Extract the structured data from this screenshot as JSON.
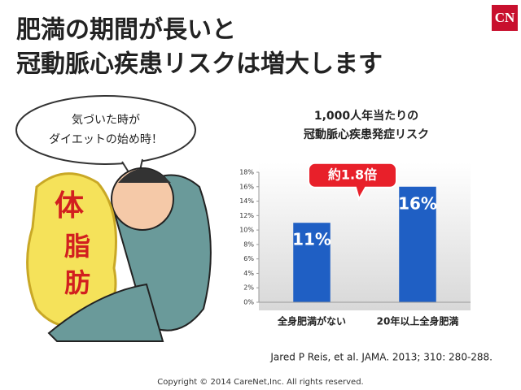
{
  "slide": {
    "title": [
      "肥満の期間が長いと",
      "冠動脈心疾患リスクは増大します"
    ],
    "logo": "CN",
    "bubble": [
      "気づいた時が",
      "ダイエットの始め時！"
    ],
    "illustration_text": [
      "体",
      "脂",
      "肪"
    ],
    "citation": "Jared P Reis, et al. JAMA. 2013; 310: 280-288.",
    "copyright": "Copyright © 2014 CareNet,Inc. All rights reserved."
  },
  "chart_data": {
    "type": "bar",
    "title": [
      "1,000人年当たりの",
      "冠動脈心疾患発症リスク"
    ],
    "categories": [
      "全身肥満がない",
      "20年以上全身肥満"
    ],
    "values": [
      11,
      16
    ],
    "value_labels": [
      "11%",
      "16%"
    ],
    "color": "#1f5fc4",
    "annotation": "約1.8倍",
    "ylim": [
      0,
      18
    ],
    "yticks": [
      {
        "value": 0,
        "label": "0%"
      },
      {
        "value": 2,
        "label": "2%"
      },
      {
        "value": 4,
        "label": "4%"
      },
      {
        "value": 6,
        "label": "6%"
      },
      {
        "value": 8,
        "label": "8%"
      },
      {
        "value": 10,
        "label": "10%"
      },
      {
        "value": 12,
        "label": "12%"
      },
      {
        "value": 14,
        "label": "14%"
      },
      {
        "value": 16,
        "label": "16%"
      },
      {
        "value": 18,
        "label": "18%"
      }
    ],
    "grid": false
  }
}
